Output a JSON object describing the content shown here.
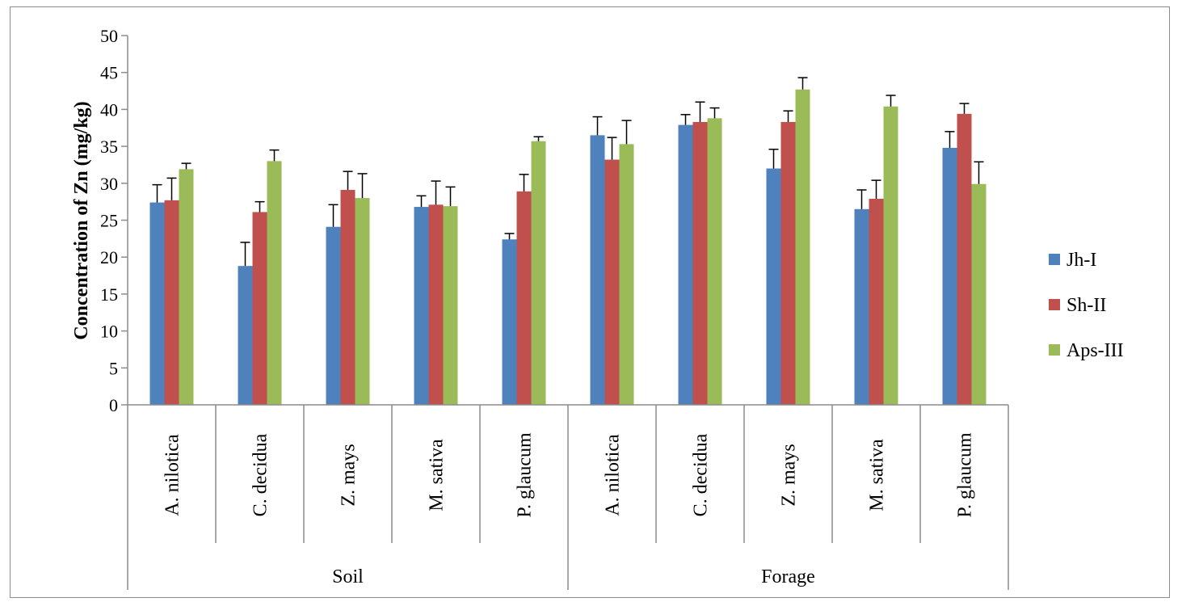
{
  "chart_data": {
    "type": "bar",
    "title": "",
    "ylabel": "Concentration of Zn (mg/kg)",
    "xlabel": "",
    "ylim": [
      0,
      50
    ],
    "yticks": [
      0,
      5,
      10,
      15,
      20,
      25,
      30,
      35,
      40,
      45,
      50
    ],
    "groups": [
      {
        "label": "Soil",
        "categories": [
          "A. nilotica",
          "C.  decidua",
          "Z. mays",
          "M. sativa",
          "P. glaucum"
        ]
      },
      {
        "label": "Forage",
        "categories": [
          "A. nilotica",
          "C.  decidua",
          "Z. mays",
          "M. sativa",
          "P. glaucum"
        ]
      }
    ],
    "series": [
      {
        "name": "Jh-I",
        "color": "#4f81bd",
        "values": [
          27.4,
          18.8,
          24.1,
          26.8,
          22.4,
          36.5,
          37.9,
          32.0,
          26.5,
          34.8
        ],
        "errors": [
          2.4,
          3.2,
          3.0,
          1.5,
          0.8,
          2.5,
          1.4,
          2.6,
          2.6,
          2.2
        ]
      },
      {
        "name": "Sh-II",
        "color": "#c0504d",
        "values": [
          27.7,
          26.1,
          29.1,
          27.1,
          28.9,
          33.2,
          38.3,
          38.3,
          27.9,
          39.4
        ],
        "errors": [
          3.0,
          1.4,
          2.5,
          3.2,
          2.3,
          3.0,
          2.7,
          1.5,
          2.5,
          1.4
        ]
      },
      {
        "name": "Aps-III",
        "color": "#9bbb59",
        "values": [
          31.9,
          33.0,
          28.0,
          26.9,
          35.7,
          35.3,
          38.8,
          42.7,
          40.4,
          29.9
        ],
        "errors": [
          0.8,
          1.5,
          3.3,
          2.6,
          0.6,
          3.2,
          1.4,
          1.6,
          1.5,
          3.0
        ]
      }
    ],
    "legend": "right",
    "grid": false
  }
}
